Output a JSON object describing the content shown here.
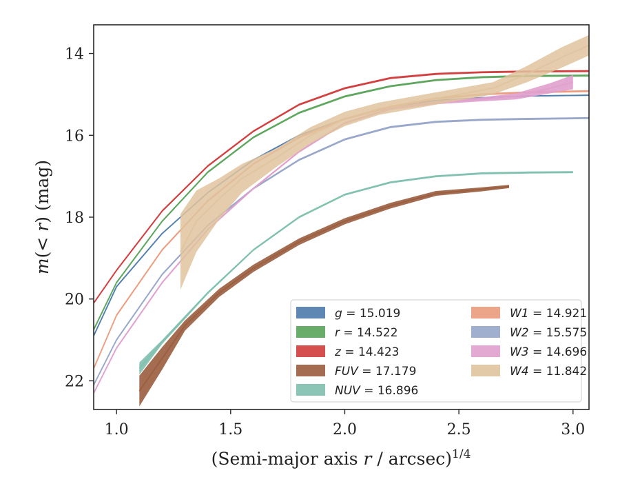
{
  "chart_data": {
    "type": "line",
    "xlabel": "(Semi-major axis r / arcsec)1/4",
    "ylabel": "m(< r) (mag)",
    "xlim": [
      0.9,
      3.07
    ],
    "ylim": [
      22.7,
      13.3
    ],
    "y_inverted": true,
    "grid": false,
    "legend_position": "lower-right",
    "x_ticks": [
      1.0,
      1.5,
      2.0,
      2.5,
      3.0
    ],
    "x_tick_labels": [
      "1.0",
      "1.5",
      "2.0",
      "2.5",
      "3.0"
    ],
    "y_ticks": [
      14,
      16,
      18,
      20,
      22
    ],
    "y_tick_labels": [
      "14",
      "16",
      "18",
      "20",
      "22"
    ],
    "series": [
      {
        "name": "g = 15.019",
        "color": "#4c7bab",
        "x": [
          0.9,
          1.0,
          1.2,
          1.4,
          1.6,
          1.8,
          2.0,
          2.2,
          2.4,
          2.6,
          2.8,
          3.07
        ],
        "y": [
          20.9,
          19.7,
          18.4,
          17.4,
          16.6,
          16.0,
          15.6,
          15.3,
          15.15,
          15.08,
          15.04,
          15.02
        ],
        "band_width": [
          0.05,
          0.04,
          0.03,
          0.03,
          0.03,
          0.03,
          0.03,
          0.03,
          0.03,
          0.03,
          0.03,
          0.03
        ]
      },
      {
        "name": "r = 14.522",
        "color": "#5aa45a",
        "x": [
          0.9,
          1.0,
          1.2,
          1.4,
          1.6,
          1.8,
          2.0,
          2.2,
          2.4,
          2.6,
          2.8,
          3.07
        ],
        "y": [
          20.75,
          19.6,
          18.1,
          16.9,
          16.05,
          15.45,
          15.05,
          14.8,
          14.65,
          14.58,
          14.55,
          14.54
        ],
        "band_width": [
          0.07,
          0.05,
          0.05,
          0.05,
          0.05,
          0.05,
          0.05,
          0.05,
          0.05,
          0.05,
          0.05,
          0.05
        ]
      },
      {
        "name": "z = 14.423",
        "color": "#d13c3c",
        "x": [
          0.9,
          1.0,
          1.2,
          1.4,
          1.6,
          1.8,
          2.0,
          2.2,
          2.4,
          2.6,
          2.8,
          3.07
        ],
        "y": [
          20.1,
          19.3,
          17.85,
          16.75,
          15.9,
          15.25,
          14.85,
          14.6,
          14.5,
          14.46,
          14.44,
          14.43
        ],
        "band_width": [
          0.05,
          0.05,
          0.05,
          0.05,
          0.05,
          0.05,
          0.05,
          0.05,
          0.05,
          0.05,
          0.05,
          0.05
        ]
      },
      {
        "name": "FUV = 17.179",
        "color": "#9a5d3e",
        "x": [
          1.1,
          1.2,
          1.3,
          1.45,
          1.6,
          1.8,
          2.0,
          2.2,
          2.4,
          2.6,
          2.72
        ],
        "y": [
          22.25,
          21.45,
          20.65,
          19.85,
          19.25,
          18.6,
          18.1,
          17.72,
          17.42,
          17.32,
          17.25
        ],
        "band_width": [
          0.75,
          0.55,
          0.25,
          0.2,
          0.18,
          0.16,
          0.15,
          0.14,
          0.12,
          0.1,
          0.08
        ]
      },
      {
        "name": "NUV = 16.896",
        "color": "#7fbfae",
        "x": [
          1.1,
          1.2,
          1.4,
          1.6,
          1.8,
          2.0,
          2.2,
          2.4,
          2.6,
          2.8,
          3.0
        ],
        "y": [
          21.7,
          21.05,
          19.85,
          18.8,
          18.0,
          17.45,
          17.15,
          17.0,
          16.93,
          16.91,
          16.9
        ],
        "band_width": [
          0.3,
          0.1,
          0.06,
          0.05,
          0.05,
          0.05,
          0.05,
          0.05,
          0.05,
          0.05,
          0.05
        ]
      },
      {
        "name": "W1 = 14.921",
        "color": "#eb9b7d",
        "x": [
          0.9,
          1.0,
          1.2,
          1.4,
          1.6,
          1.8,
          2.0,
          2.2,
          2.4,
          2.6,
          2.8,
          3.07
        ],
        "y": [
          21.7,
          20.4,
          18.8,
          17.6,
          16.7,
          16.05,
          15.6,
          15.3,
          15.1,
          15.0,
          14.95,
          14.92
        ],
        "band_width": [
          0.05,
          0.05,
          0.05,
          0.05,
          0.05,
          0.05,
          0.05,
          0.05,
          0.05,
          0.05,
          0.05,
          0.05
        ]
      },
      {
        "name": "W2 = 15.575",
        "color": "#97a6c9",
        "x": [
          0.9,
          1.0,
          1.2,
          1.4,
          1.6,
          1.8,
          2.0,
          2.2,
          2.4,
          2.6,
          2.8,
          3.07
        ],
        "y": [
          22.1,
          21.0,
          19.4,
          18.2,
          17.3,
          16.6,
          16.1,
          15.8,
          15.67,
          15.62,
          15.6,
          15.58
        ],
        "band_width": [
          0.05,
          0.05,
          0.05,
          0.05,
          0.05,
          0.05,
          0.05,
          0.05,
          0.05,
          0.05,
          0.05,
          0.05
        ]
      },
      {
        "name": "W3 = 14.696",
        "color": "#e0a0cd",
        "x": [
          0.9,
          1.0,
          1.2,
          1.4,
          1.6,
          1.8,
          2.0,
          2.2,
          2.4,
          2.6,
          2.75,
          2.9,
          3.0
        ],
        "y": [
          22.3,
          21.2,
          19.6,
          18.3,
          17.3,
          16.4,
          15.7,
          15.35,
          15.2,
          15.12,
          15.05,
          14.85,
          14.7
        ],
        "band_width": [
          0.05,
          0.05,
          0.05,
          0.05,
          0.05,
          0.05,
          0.05,
          0.06,
          0.08,
          0.1,
          0.15,
          0.25,
          0.35
        ]
      },
      {
        "name": "W4 = 11.842",
        "color": "#dfc39d",
        "x": [
          1.28,
          1.35,
          1.45,
          1.55,
          1.7,
          1.85,
          2.0,
          2.15,
          2.3,
          2.5,
          2.65,
          2.8,
          2.95,
          3.07
        ],
        "y": [
          18.85,
          18.1,
          17.55,
          17.05,
          16.55,
          16.0,
          15.6,
          15.35,
          15.2,
          15.0,
          14.85,
          14.5,
          14.1,
          13.8
        ],
        "band_width": [
          1.85,
          1.5,
          1.0,
          0.7,
          0.45,
          0.4,
          0.35,
          0.3,
          0.3,
          0.3,
          0.3,
          0.4,
          0.5,
          0.5
        ]
      }
    ]
  }
}
